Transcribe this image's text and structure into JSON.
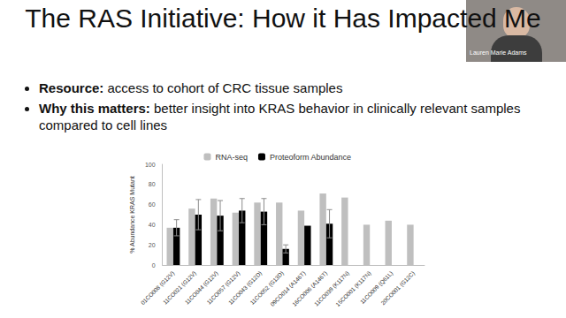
{
  "slide": {
    "title": "The RAS Initiative: How it Has Impacted Me",
    "presenter": "Lauren Marie Adams",
    "bullets": [
      {
        "label": "Resource:",
        "text": "access to cohort of CRC tissue samples"
      },
      {
        "label": "Why this matters:",
        "text": "better insight into KRAS behavior in clinically relevant samples compared to cell lines"
      }
    ]
  },
  "chart_data": {
    "type": "bar",
    "y_label": "% Abundance KRAS Mutant",
    "categories": [
      "01CO008 (G12V)",
      "11CO021 (G12V)",
      "11CO044 (G12V)",
      "11CO057 (G12V)",
      "11CO043 (G12D)",
      "11CO052 (G13D)",
      "09CO014 (A146T)",
      "16CO006 (A146T)",
      "11CO039 (K117N)",
      "15CO001 (K117N)",
      "11CO009 (Q61L)",
      "20CO001 (G12C)"
    ],
    "series": [
      {
        "name": "RNA-seq",
        "color": "#bfbfbf",
        "values": [
          37,
          56,
          66,
          52,
          62,
          62,
          54,
          71,
          67,
          40,
          44,
          40
        ]
      },
      {
        "name": "Proteoform Abundance",
        "color": "#000000",
        "values": [
          37,
          50,
          49,
          54,
          53,
          16,
          39,
          41,
          null,
          null,
          null,
          null
        ],
        "errors": [
          8,
          15,
          15,
          12,
          13,
          4,
          null,
          14,
          null,
          null,
          null,
          null
        ]
      }
    ],
    "ylim": [
      0,
      100
    ],
    "yticks": [
      0,
      20,
      40,
      60,
      80,
      100
    ],
    "grid": false,
    "legend": "top"
  }
}
